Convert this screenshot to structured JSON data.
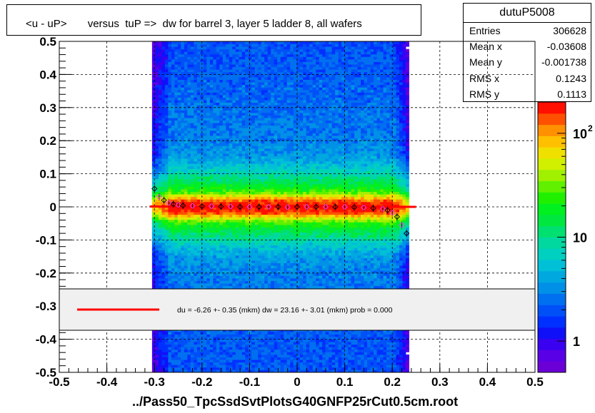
{
  "title": "<u - uP>       versus  tuP =>  dw for barrel 3, layer 5 ladder 8, all wafers",
  "stats": {
    "name": "dutuP5008",
    "rows": [
      {
        "label": "Entries",
        "value": "306628"
      },
      {
        "label": "Mean x",
        "value": "-0.03608"
      },
      {
        "label": "Mean y",
        "value": "-0.001738"
      },
      {
        "label": "RMS x",
        "value": "0.1243"
      },
      {
        "label": "RMS y",
        "value": "0.1113"
      }
    ]
  },
  "legend_text": "du =   -6.26 +-  0.35 (mkm) dw =   23.16 +-  3.01 (mkm) prob = 0.000",
  "footer": "../Pass50_TpcSsdSvtPlotsG40GNFP25rCut0.5cm.root",
  "colors": {
    "fit_line": "#ff0000",
    "legend_bg": "#f0f0f0"
  },
  "chart_data": {
    "type": "heatmap",
    "xlim": [
      -0.5,
      0.5
    ],
    "ylim": [
      -0.5,
      0.5
    ],
    "x_ticks": [
      -0.5,
      -0.4,
      -0.3,
      -0.2,
      -0.1,
      0,
      0.1,
      0.2,
      0.3,
      0.4,
      0.5
    ],
    "x_tick_labels": [
      "-0.5",
      "-0.4",
      "-0.3",
      "-0.2",
      "-0.1",
      "0",
      "0.1",
      "0.2",
      "0.3",
      "0.4",
      "0.5"
    ],
    "y_ticks": [
      -0.5,
      -0.4,
      -0.3,
      -0.2,
      -0.1,
      0,
      0.1,
      0.2,
      0.3,
      0.4,
      0.5
    ],
    "y_tick_labels": [
      "-0.5",
      "-0.4",
      "-0.3",
      "-0.2",
      "-0.1",
      "0",
      "0.1",
      "0.2",
      "0.3",
      "0.4",
      "0.5"
    ],
    "grid": true,
    "log_z": true,
    "z_ticks": [
      {
        "value": 1,
        "label": "1"
      },
      {
        "value": 10,
        "label": "10"
      },
      {
        "value": 100,
        "label": "10",
        "exp": "2"
      }
    ],
    "z_range": [
      0.5,
      200
    ],
    "x_data_range": [
      -0.305,
      0.235
    ],
    "profile_x": [
      -0.3,
      -0.29,
      -0.28,
      -0.27,
      -0.26,
      -0.25,
      -0.24,
      -0.22,
      -0.2,
      -0.18,
      -0.16,
      -0.14,
      -0.12,
      -0.1,
      -0.08,
      -0.06,
      -0.04,
      -0.02,
      0,
      0.02,
      0.04,
      0.06,
      0.08,
      0.1,
      0.12,
      0.14,
      0.16,
      0.18,
      0.19,
      0.2,
      0.21,
      0.22,
      0.23
    ],
    "profile_y": [
      0.055,
      0.03,
      0.02,
      0.012,
      0.008,
      0.006,
      0.004,
      0.003,
      0.002,
      0.002,
      0.001,
      0.001,
      0.0,
      0.0,
      0.0,
      0.0,
      0.0,
      -0.001,
      0.0,
      0.0,
      0.0,
      0.0,
      0.0,
      0.0,
      -0.001,
      -0.002,
      -0.004,
      -0.006,
      -0.01,
      -0.018,
      -0.03,
      -0.055,
      -0.08
    ],
    "fit_line": {
      "x": [
        -0.31,
        0.25
      ],
      "y": [
        0.001,
        0.0
      ]
    }
  }
}
